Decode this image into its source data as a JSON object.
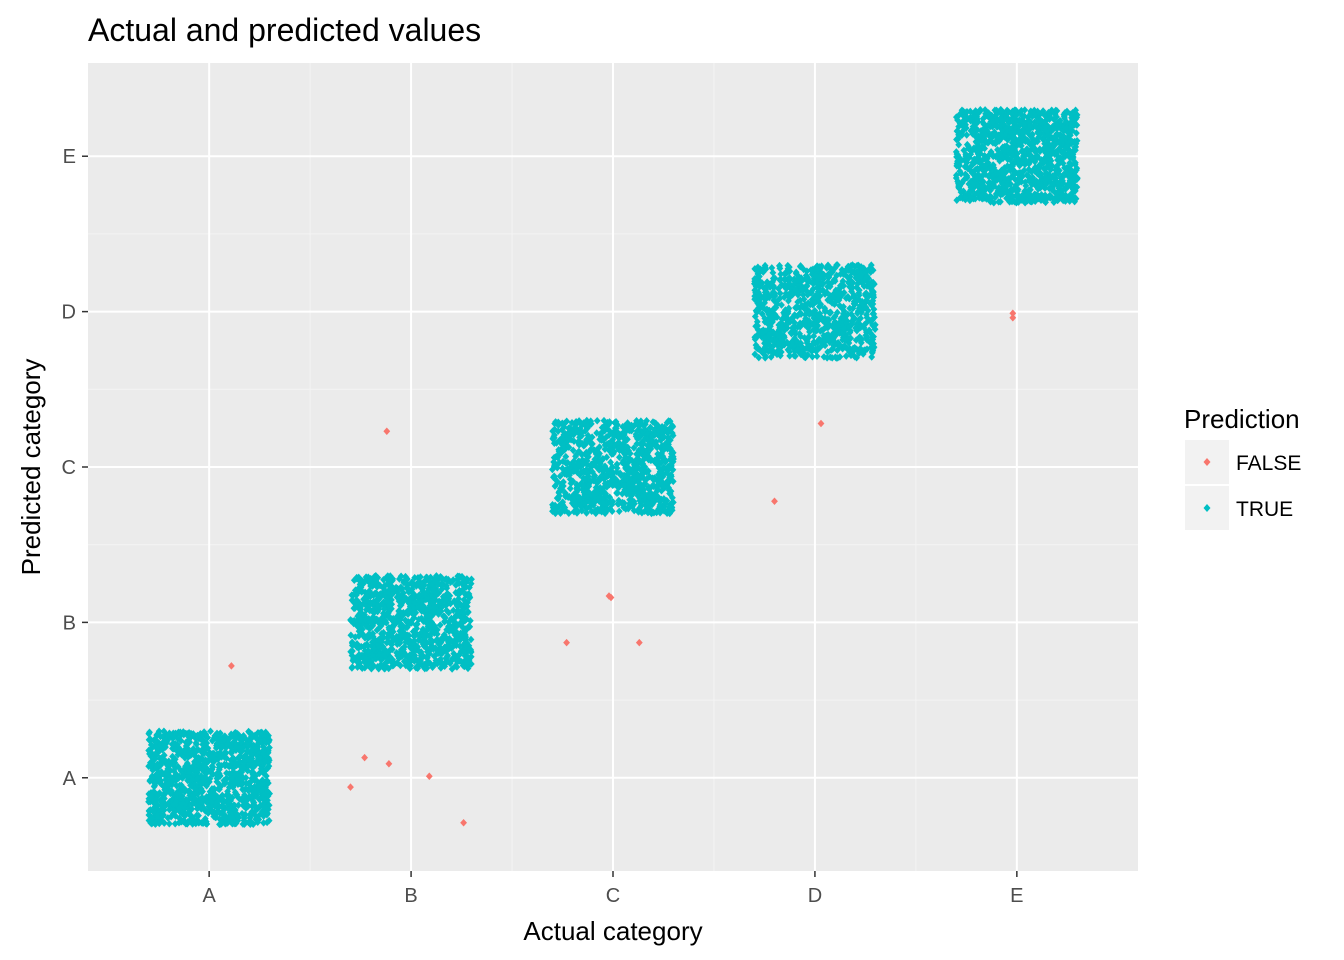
{
  "chart_data": {
    "type": "scatter",
    "title": "Actual and predicted values",
    "xlabel": "Actual category",
    "ylabel": "Predicted category",
    "x_categories": [
      "A",
      "B",
      "C",
      "D",
      "E"
    ],
    "y_categories": [
      "A",
      "B",
      "C",
      "D",
      "E"
    ],
    "jitter": 0.3,
    "grid": true,
    "legend": {
      "title": "Prediction",
      "position": "right",
      "entries": [
        {
          "label": "FALSE",
          "color": "#f8766d"
        },
        {
          "label": "TRUE",
          "color": "#00bfc4"
        }
      ]
    },
    "series": [
      {
        "name": "FALSE",
        "color": "#f8766d",
        "points": [
          {
            "x": 1.11,
            "y": 1.72
          },
          {
            "x": 1.7,
            "y": 0.94
          },
          {
            "x": 1.77,
            "y": 1.13
          },
          {
            "x": 1.89,
            "y": 1.09
          },
          {
            "x": 2.09,
            "y": 1.01
          },
          {
            "x": 2.26,
            "y": 0.71
          },
          {
            "x": 1.88,
            "y": 3.23
          },
          {
            "x": 2.77,
            "y": 1.87
          },
          {
            "x": 2.98,
            "y": 2.17
          },
          {
            "x": 2.99,
            "y": 2.16
          },
          {
            "x": 3.13,
            "y": 1.87
          },
          {
            "x": 3.8,
            "y": 2.78
          },
          {
            "x": 4.03,
            "y": 3.28
          },
          {
            "x": 4.98,
            "y": 3.99
          },
          {
            "x": 4.98,
            "y": 3.96
          }
        ]
      },
      {
        "name": "TRUE",
        "color": "#00bfc4",
        "counts": [
          1150,
          1020,
          980,
          890,
          1090
        ]
      }
    ]
  }
}
